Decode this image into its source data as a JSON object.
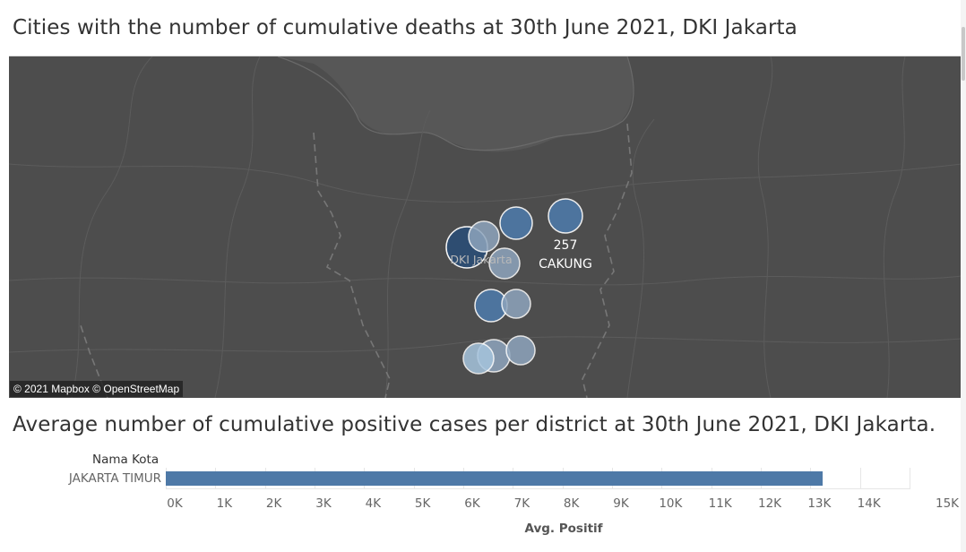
{
  "map_chart": {
    "title": "Cities with the number of cumulative deaths at 30th June 2021, DKI Jakarta",
    "attribution": "© 2021 Mapbox © OpenStreetMap",
    "map_label": "DKI Jakarta",
    "highlight_value": "257",
    "highlight_label": "CAKUNG",
    "colors": {
      "background": "#4d4d4d",
      "sea": "#575757",
      "dark_circle": "#2d4d73",
      "mid_circle": "#4e79a7",
      "light_circle": "#8ea5bd",
      "pale_circle": "#a6c4dd"
    }
  },
  "bar_chart": {
    "title": "Average number of cumulative positive cases per district at 30th June 2021, DKI Jakarta.",
    "row_header": "Nama Kota",
    "x_axis_title": "Avg. Positif",
    "bar_color": "#4e79a7"
  },
  "chart_data": [
    {
      "type": "scatter",
      "title": "Cities with the number of cumulative deaths at 30th June 2021, DKI Jakarta",
      "annotations": [
        {
          "label": "CAKUNG",
          "value": 257
        }
      ]
    },
    {
      "type": "bar",
      "title": "Average number of cumulative positive cases per district at 30th June 2021, DKI Jakarta.",
      "row_header": "Nama Kota",
      "categories": [
        "JAKARTA TIMUR"
      ],
      "values": [
        13250
      ],
      "xlabel": "Avg. Positif",
      "xlim": [
        0,
        15000
      ],
      "tick_labels": [
        "0K",
        "1K",
        "2K",
        "3K",
        "4K",
        "5K",
        "6K",
        "7K",
        "8K",
        "9K",
        "10K",
        "11K",
        "12K",
        "13K",
        "14K",
        "15K"
      ],
      "tick_values": [
        0,
        1000,
        2000,
        3000,
        4000,
        5000,
        6000,
        7000,
        8000,
        9000,
        10000,
        11000,
        12000,
        13000,
        14000,
        15000
      ],
      "grid": true
    }
  ]
}
